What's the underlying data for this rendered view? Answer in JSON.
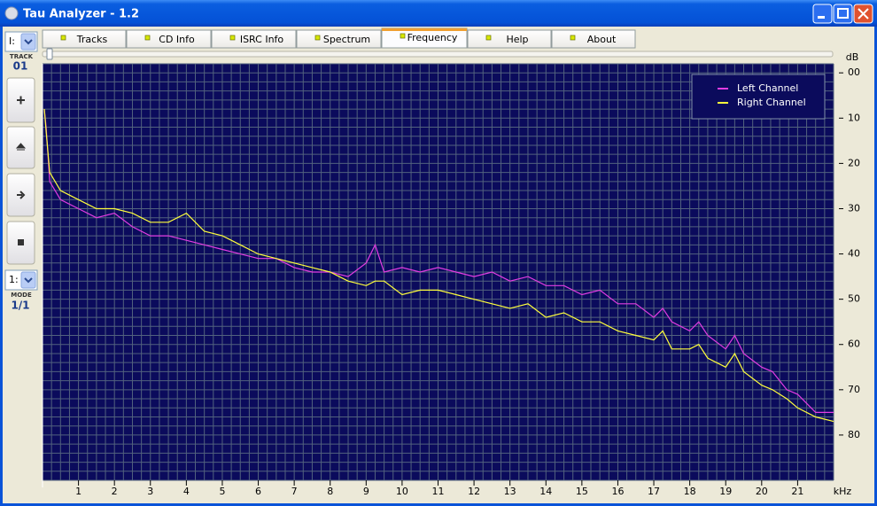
{
  "window": {
    "title": "Tau Analyzer - 1.2"
  },
  "tabs": [
    "Tracks",
    "CD Info",
    "ISRC Info",
    "Spectrum",
    "Frequency",
    "Help",
    "About"
  ],
  "active_tab_index": 4,
  "left_panel": {
    "drive": "I:",
    "track_label": "TRACK",
    "track": "01",
    "mode_select": "1:",
    "mode_label": "MODE",
    "mode": "1/1"
  },
  "chart_data": {
    "type": "line",
    "x_label": "kHz",
    "y_label": "dB",
    "x": [
      0.05,
      0.1,
      0.2,
      0.5,
      1,
      1.5,
      2,
      2.5,
      3,
      3.5,
      4,
      4.5,
      5,
      5.5,
      6,
      6.5,
      7,
      7.5,
      8,
      8.5,
      9,
      9.25,
      9.5,
      10,
      10.5,
      11,
      11.5,
      12,
      12.5,
      13,
      13.5,
      14,
      14.5,
      15,
      15.5,
      16,
      16.5,
      17,
      17.25,
      17.5,
      18,
      18.25,
      18.5,
      19,
      19.25,
      19.5,
      20,
      20.3,
      20.7,
      21,
      21.5,
      22
    ],
    "series": [
      {
        "name": "Left Channel",
        "color": "#e23ce2",
        "values": [
          8,
          12,
          24,
          28,
          30,
          32,
          31,
          34,
          36,
          36,
          37,
          38,
          39,
          40,
          41,
          41,
          43,
          44,
          44,
          45,
          42,
          38,
          44,
          43,
          44,
          43,
          44,
          45,
          44,
          46,
          45,
          47,
          47,
          49,
          48,
          51,
          51,
          54,
          52,
          55,
          57,
          55,
          58,
          61,
          58,
          62,
          65,
          66,
          70,
          71,
          75,
          75
        ]
      },
      {
        "name": "Right Channel",
        "color": "#ffff3c",
        "values": [
          8,
          13,
          22,
          26,
          28,
          30,
          30,
          31,
          33,
          33,
          31,
          35,
          36,
          38,
          40,
          41,
          42,
          43,
          44,
          46,
          47,
          46,
          46,
          49,
          48,
          48,
          49,
          50,
          51,
          52,
          51,
          54,
          53,
          55,
          55,
          57,
          58,
          59,
          57,
          61,
          61,
          60,
          63,
          65,
          62,
          66,
          69,
          70,
          72,
          74,
          76,
          77
        ]
      }
    ],
    "xlim": [
      0,
      22
    ],
    "xticks": [
      1,
      2,
      3,
      4,
      5,
      6,
      7,
      8,
      9,
      10,
      11,
      12,
      13,
      14,
      15,
      16,
      17,
      18,
      19,
      20,
      21
    ],
    "ylim": [
      90,
      -2
    ],
    "yticks": [
      {
        "value": 0,
        "label": "00"
      },
      10,
      20,
      30,
      40,
      50,
      60,
      70,
      80
    ],
    "minor_grid": {
      "x": 0.25,
      "y": 2
    },
    "background": "#0b0b5c",
    "legend": "top-right"
  }
}
